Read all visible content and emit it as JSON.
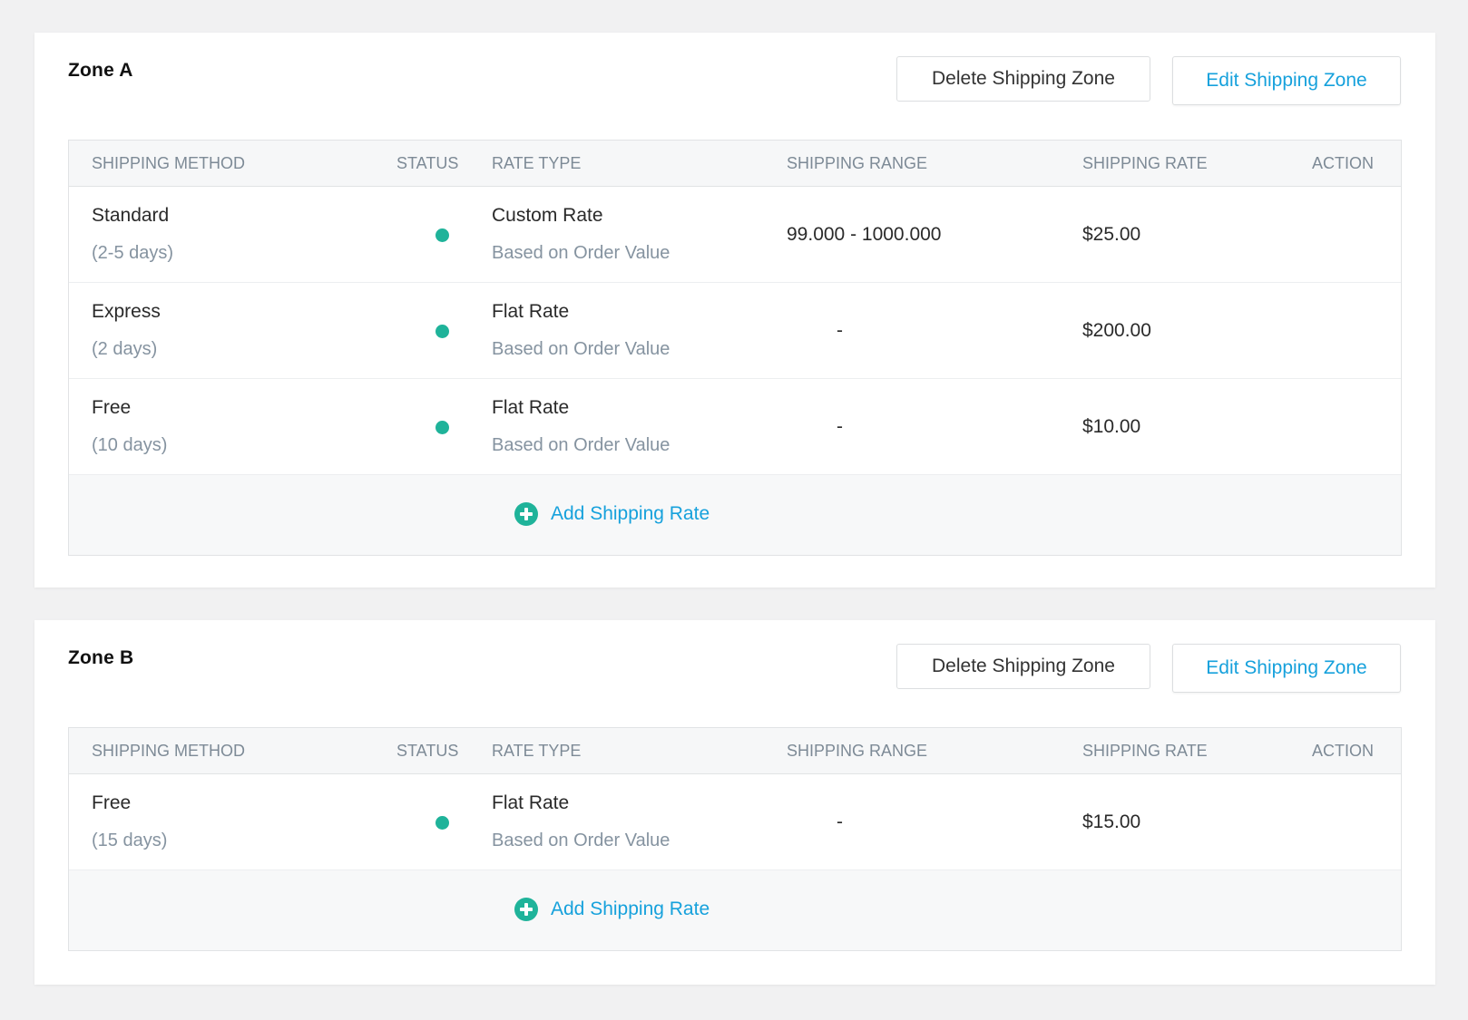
{
  "colors": {
    "accent_blue": "#16a1dc",
    "status_green": "#1fb39a",
    "header_text": "#7d8a96",
    "page_bg": "#f1f1f2"
  },
  "columns": {
    "method": "SHIPPING METHOD",
    "status": "STATUS",
    "rate_type": "RATE TYPE",
    "range": "SHIPPING RANGE",
    "rate": "SHIPPING RATE",
    "action": "ACTION"
  },
  "zones": [
    {
      "title": "Zone A",
      "delete_label": "Delete Shipping Zone",
      "edit_label": "Edit Shipping Zone",
      "add_label": "Add Shipping Rate",
      "rows": [
        {
          "method": "Standard",
          "duration": "(2-5 days)",
          "status": "active",
          "rate_type": "Custom Rate",
          "rate_basis": "Based on Order Value",
          "range": "99.000 - 1000.000",
          "rate": "$25.00"
        },
        {
          "method": "Express",
          "duration": "(2 days)",
          "status": "active",
          "rate_type": "Flat Rate",
          "rate_basis": "Based on Order Value",
          "range": "-",
          "rate": "$200.00"
        },
        {
          "method": "Free",
          "duration": "(10 days)",
          "status": "active",
          "rate_type": "Flat Rate",
          "rate_basis": "Based on Order Value",
          "range": "-",
          "rate": "$10.00"
        }
      ]
    },
    {
      "title": "Zone B",
      "delete_label": "Delete Shipping Zone",
      "edit_label": "Edit Shipping Zone",
      "add_label": "Add Shipping Rate",
      "rows": [
        {
          "method": "Free",
          "duration": "(15 days)",
          "status": "active",
          "rate_type": "Flat Rate",
          "rate_basis": "Based on Order Value",
          "range": "-",
          "rate": "$15.00"
        }
      ]
    }
  ]
}
